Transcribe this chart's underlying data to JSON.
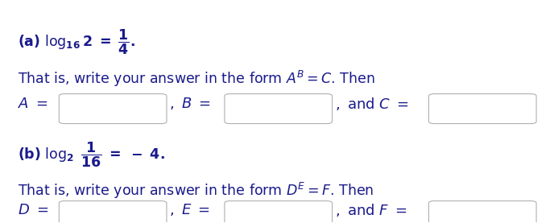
{
  "bg_color": "#ffffff",
  "text_color": "#1a1a8c",
  "box_color": "#ffffff",
  "box_edge_color": "#b0b0b0",
  "figsize": [
    6.88,
    2.77
  ],
  "dpi": 100
}
